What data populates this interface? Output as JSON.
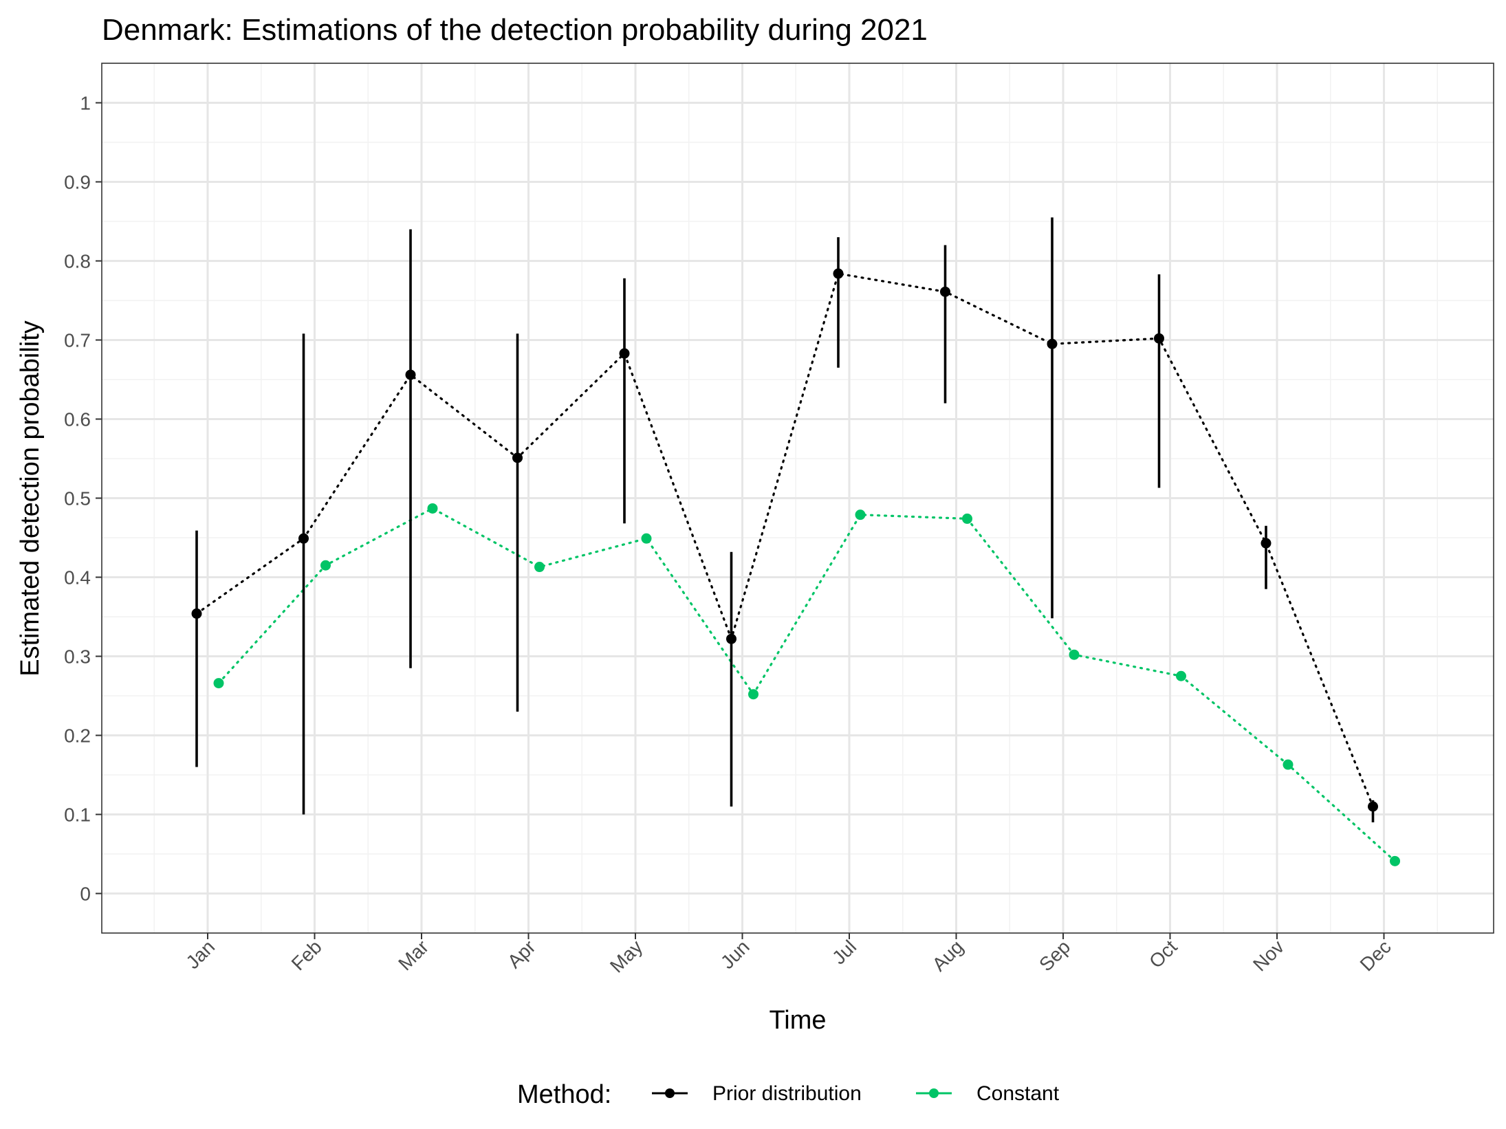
{
  "chart_data": {
    "type": "line",
    "title": "Denmark: Estimations of the detection probability during 2021",
    "xlabel": "Time",
    "ylabel": "Estimated detection probability",
    "categories": [
      "Jan",
      "Feb",
      "Mar",
      "Apr",
      "May",
      "Jun",
      "Jul",
      "Aug",
      "Sep",
      "Oct",
      "Nov",
      "Dec"
    ],
    "ylim": [
      -0.05,
      1.05
    ],
    "yticks": [
      "0",
      "0.1",
      "0.2",
      "0.3",
      "0.4",
      "0.5",
      "0.6",
      "0.7",
      "0.8",
      "0.9",
      "1"
    ],
    "grid": true,
    "legend": {
      "title": "Method:",
      "placement": "bottom"
    },
    "series": [
      {
        "name": "Prior distribution",
        "color": "#000000",
        "values": [
          0.354,
          0.449,
          0.656,
          0.551,
          0.683,
          0.322,
          0.784,
          0.761,
          0.695,
          0.702,
          0.443,
          0.11
        ],
        "lower": [
          0.16,
          0.1,
          0.285,
          0.23,
          0.468,
          0.11,
          0.665,
          0.62,
          0.348,
          0.513,
          0.385,
          0.09
        ],
        "upper": [
          0.459,
          0.708,
          0.84,
          0.708,
          0.778,
          0.432,
          0.83,
          0.82,
          0.855,
          0.783,
          0.465,
          0.118
        ]
      },
      {
        "name": "Constant",
        "color": "#00C466",
        "values": [
          0.266,
          0.415,
          0.487,
          0.413,
          0.449,
          0.252,
          0.479,
          0.474,
          0.302,
          0.275,
          0.163,
          0.041
        ]
      }
    ]
  }
}
